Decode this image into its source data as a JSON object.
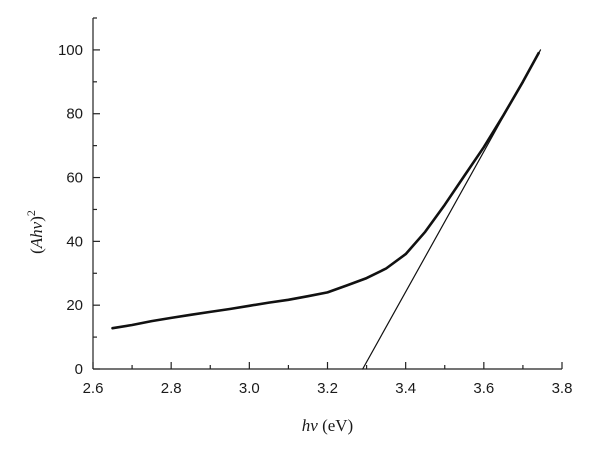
{
  "chart_data": {
    "type": "line",
    "title": "",
    "xlabel": "hν (eV)",
    "xlabel_parts": {
      "symbol": "hν",
      "unit": " (eV)"
    },
    "ylabel": "(Ahν)²",
    "ylabel_parts": {
      "open": "(",
      "symbol": "Ahν",
      "close": ")",
      "power": "2"
    },
    "xlim": [
      2.6,
      3.8
    ],
    "ylim": [
      0,
      110
    ],
    "x_ticks": [
      2.6,
      2.8,
      3.0,
      3.2,
      3.4,
      3.6,
      3.8
    ],
    "x_tick_labels": [
      "2.6",
      "2.8",
      "3.0",
      "3.2",
      "3.4",
      "3.6",
      "3.8"
    ],
    "y_ticks": [
      0,
      20,
      40,
      60,
      80,
      100
    ],
    "y_tick_labels": [
      "0",
      "20",
      "40",
      "60",
      "80",
      "100"
    ],
    "grid": false,
    "series": [
      {
        "style": "thick",
        "color": "#111111",
        "x": [
          2.65,
          2.7,
          2.75,
          2.8,
          2.85,
          2.9,
          2.95,
          3.0,
          3.05,
          3.1,
          3.15,
          3.2,
          3.25,
          3.3,
          3.35,
          3.4,
          3.45,
          3.5,
          3.55,
          3.6,
          3.65,
          3.7,
          3.74
        ],
        "y": [
          12.8,
          13.8,
          15.0,
          16.0,
          17.0,
          17.9,
          18.8,
          19.8,
          20.8,
          21.7,
          22.8,
          24.0,
          26.2,
          28.5,
          31.5,
          36.0,
          43.0,
          51.5,
          60.5,
          69.5,
          79.5,
          90.0,
          99.0
        ]
      },
      {
        "style": "thin",
        "color": "#111111",
        "x": [
          3.29,
          3.745
        ],
        "y": [
          0,
          100
        ]
      }
    ]
  }
}
